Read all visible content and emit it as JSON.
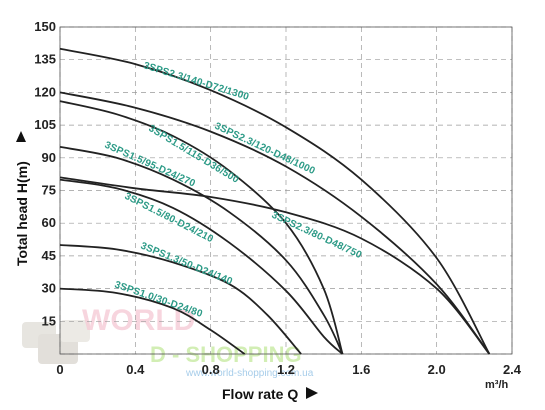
{
  "chart_data": {
    "type": "line",
    "xlabel": "Flow rate Q",
    "ylabel": "Total head H(m)",
    "x_unit": "m³/h",
    "xlim": [
      0,
      2.4
    ],
    "ylim": [
      0,
      150
    ],
    "x_ticks": [
      "0",
      "0.4",
      "0.8",
      "1.2",
      "1.6",
      "2.0",
      "2.4"
    ],
    "y_ticks": [
      "0",
      "15",
      "30",
      "45",
      "60",
      "75",
      "90",
      "105",
      "120",
      "135",
      "150"
    ],
    "grid": "dashed",
    "series": [
      {
        "name": "3SPS2.3/140-D72/1300",
        "points": [
          [
            0,
            140
          ],
          [
            0.4,
            133
          ],
          [
            0.8,
            121
          ],
          [
            1.2,
            104
          ],
          [
            1.6,
            80
          ],
          [
            2.0,
            44
          ],
          [
            2.28,
            0
          ]
        ]
      },
      {
        "name": "3SPS2.3/120-D48/1000",
        "points": [
          [
            0,
            120
          ],
          [
            0.4,
            113
          ],
          [
            0.8,
            102
          ],
          [
            1.2,
            86
          ],
          [
            1.6,
            63
          ],
          [
            2.0,
            32
          ],
          [
            2.28,
            0
          ]
        ]
      },
      {
        "name": "3SPS1.5/115-D36/500",
        "points": [
          [
            0,
            116
          ],
          [
            0.3,
            110
          ],
          [
            0.6,
            100
          ],
          [
            0.9,
            84
          ],
          [
            1.2,
            60
          ],
          [
            1.4,
            30
          ],
          [
            1.5,
            0
          ]
        ]
      },
      {
        "name": "3SPS1.5/95-D24/270",
        "points": [
          [
            0,
            95
          ],
          [
            0.3,
            90
          ],
          [
            0.6,
            80
          ],
          [
            0.9,
            65
          ],
          [
            1.2,
            43
          ],
          [
            1.4,
            18
          ],
          [
            1.5,
            0
          ]
        ]
      },
      {
        "name": "3SPS2.3/80-D48/750",
        "points": [
          [
            0,
            81
          ],
          [
            0.4,
            76
          ],
          [
            0.8,
            72
          ],
          [
            1.2,
            65
          ],
          [
            1.6,
            53
          ],
          [
            2.0,
            30
          ],
          [
            2.28,
            0
          ]
        ]
      },
      {
        "name": "3SPS1.5/80-D24/210",
        "points": [
          [
            0,
            80
          ],
          [
            0.3,
            76
          ],
          [
            0.6,
            67
          ],
          [
            0.9,
            51
          ],
          [
            1.2,
            29
          ],
          [
            1.4,
            8
          ],
          [
            1.5,
            0
          ]
        ]
      },
      {
        "name": "3SPS1.3/50-D24/140",
        "points": [
          [
            0,
            50
          ],
          [
            0.3,
            48
          ],
          [
            0.6,
            42
          ],
          [
            0.9,
            32
          ],
          [
            1.1,
            18
          ],
          [
            1.28,
            0
          ]
        ]
      },
      {
        "name": "3SPS1.0/30-D24/80",
        "points": [
          [
            0,
            30
          ],
          [
            0.3,
            28
          ],
          [
            0.6,
            21
          ],
          [
            0.8,
            11
          ],
          [
            0.98,
            0
          ]
        ]
      }
    ],
    "colors": {
      "curve": "#222222",
      "label": "#2b9a86",
      "grid": "#9a9a9a",
      "frame": "#555555"
    }
  },
  "watermark": {
    "logo_letters": "WORLD",
    "text": "D - SHOPPING",
    "subtext": "www.world-shopping.com.ua"
  }
}
